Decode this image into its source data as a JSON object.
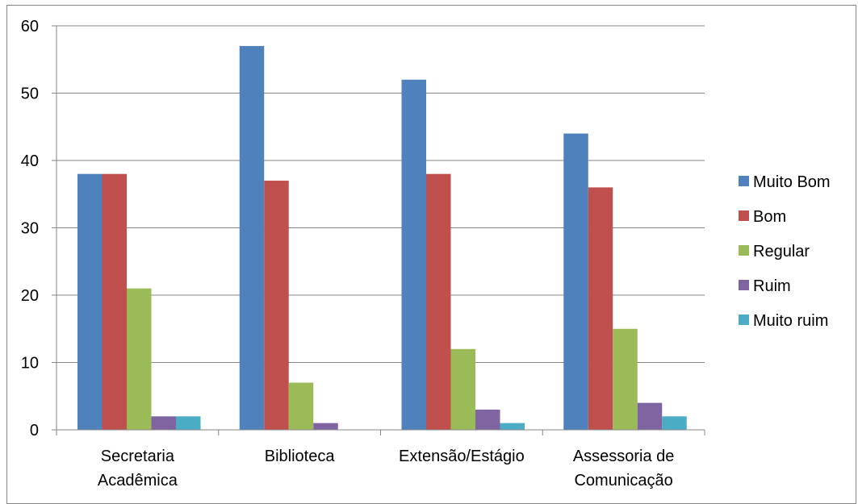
{
  "chart_data": {
    "type": "bar",
    "title": "",
    "xlabel": "",
    "ylabel": "",
    "ylim": [
      0,
      60
    ],
    "yticks": [
      0,
      10,
      20,
      30,
      40,
      50,
      60
    ],
    "grid": true,
    "legend_position": "right",
    "categories": [
      [
        "Secretaria",
        "Acadêmica"
      ],
      [
        "Biblioteca"
      ],
      [
        "Extensão/Estágio"
      ],
      [
        "Assessoria de",
        "Comunicação"
      ]
    ],
    "series": [
      {
        "name": "Muito Bom",
        "color": "#4F81BD",
        "values": [
          38,
          57,
          52,
          44
        ]
      },
      {
        "name": "Bom",
        "color": "#C0504D",
        "values": [
          38,
          37,
          38,
          36
        ]
      },
      {
        "name": "Regular",
        "color": "#9BBB59",
        "values": [
          21,
          7,
          12,
          15
        ]
      },
      {
        "name": "Ruim",
        "color": "#8064A2",
        "values": [
          2,
          1,
          3,
          4
        ]
      },
      {
        "name": "Muito ruim",
        "color": "#4BACC6",
        "values": [
          2,
          0,
          1,
          2
        ]
      }
    ]
  }
}
